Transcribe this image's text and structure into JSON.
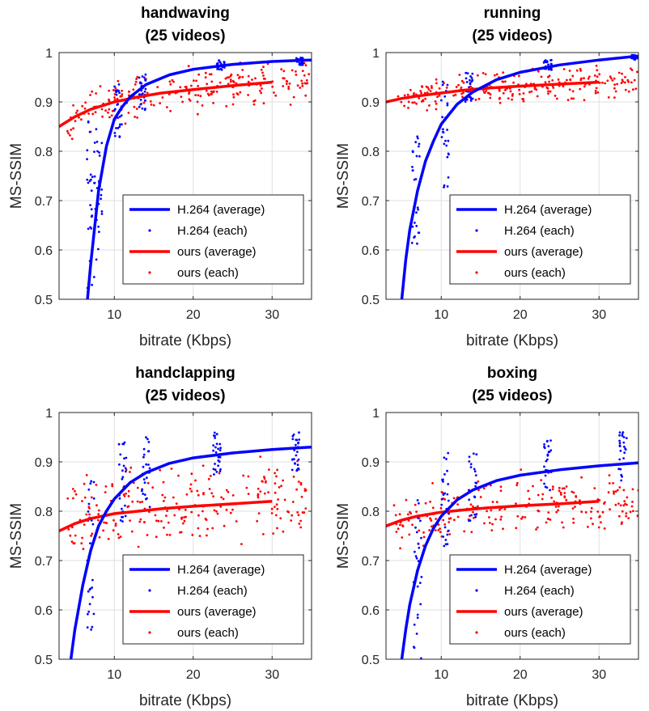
{
  "figure": {
    "type": "scatter-with-fit-curves",
    "panel_count": 4
  },
  "colors": {
    "h264": "#0000ff",
    "ours": "#ff0000",
    "axis": "#262626"
  },
  "chart_data": [
    {
      "type": "scatter",
      "title": "handwaving",
      "subtitle": "(25 videos)",
      "xlabel": "bitrate (Kbps)",
      "ylabel": "MS-SSIM",
      "xlim": [
        3,
        35
      ],
      "ylim": [
        0.5,
        1
      ],
      "xticks": [
        10,
        20,
        30
      ],
      "yticks": [
        0.5,
        0.6,
        0.7,
        0.8,
        0.9,
        1
      ],
      "xtick_labels": [
        "10",
        "20",
        "30"
      ],
      "ytick_labels": [
        "0.5",
        "0.6",
        "0.7",
        "0.8",
        "0.9",
        "1"
      ],
      "legend_position": "bottom-right",
      "legend": [
        "H.264 (average)",
        "H.264 (each)",
        "ours (average)",
        "ours (each)"
      ],
      "curves": [
        {
          "name": "H.264 (average)",
          "x": [
            6.6,
            7,
            8,
            9,
            10,
            11,
            12,
            14,
            17,
            20,
            25,
            30,
            35
          ],
          "y": [
            0.5,
            0.57,
            0.72,
            0.81,
            0.865,
            0.89,
            0.91,
            0.935,
            0.955,
            0.966,
            0.976,
            0.982,
            0.985
          ]
        },
        {
          "name": "ours (average)",
          "x": [
            3,
            5,
            7,
            10,
            13,
            16,
            20,
            25,
            30
          ],
          "y": [
            0.85,
            0.87,
            0.885,
            0.9,
            0.91,
            0.918,
            0.925,
            0.933,
            0.94
          ]
        }
      ],
      "scatter_series": [
        {
          "name": "H.264 (each)",
          "clusters": [
            {
              "x": 7,
              "y_range": [
                0.51,
                0.87
              ]
            },
            {
              "x": 8,
              "y_range": [
                0.58,
                0.86
              ]
            },
            {
              "x": 10.5,
              "y_range": [
                0.82,
                0.94
              ]
            },
            {
              "x": 13.5,
              "y_range": [
                0.88,
                0.96
              ]
            },
            {
              "x": 23.5,
              "y_range": [
                0.965,
                0.985
              ]
            },
            {
              "x": 33.5,
              "y_range": [
                0.975,
                0.99
              ]
            }
          ]
        },
        {
          "name": "ours (each)",
          "x_range": [
            4,
            35
          ],
          "spread": 0.035
        }
      ]
    },
    {
      "type": "scatter",
      "title": "running",
      "subtitle": "(25 videos)",
      "xlabel": "bitrate (Kbps)",
      "ylabel": "MS-SSIM",
      "xlim": [
        3,
        35
      ],
      "ylim": [
        0.5,
        1
      ],
      "xticks": [
        10,
        20,
        30
      ],
      "yticks": [
        0.5,
        0.6,
        0.7,
        0.8,
        0.9,
        1
      ],
      "xtick_labels": [
        "10",
        "20",
        "30"
      ],
      "ytick_labels": [
        "0.5",
        "0.6",
        "0.7",
        "0.8",
        "0.9",
        "1"
      ],
      "legend_position": "bottom-right",
      "legend": [
        "H.264 (average)",
        "H.264 (each)",
        "ours (average)",
        "ours (each)"
      ],
      "curves": [
        {
          "name": "H.264 (average)",
          "x": [
            5,
            5.5,
            6,
            7,
            8,
            9,
            10,
            12,
            14,
            17,
            20,
            25,
            30,
            35
          ],
          "y": [
            0.5,
            0.58,
            0.64,
            0.72,
            0.78,
            0.82,
            0.855,
            0.895,
            0.92,
            0.945,
            0.96,
            0.975,
            0.985,
            0.993
          ]
        },
        {
          "name": "ours (average)",
          "x": [
            3,
            5,
            7,
            10,
            13,
            16,
            20,
            25,
            30
          ],
          "y": [
            0.9,
            0.907,
            0.912,
            0.918,
            0.924,
            0.928,
            0.932,
            0.936,
            0.94
          ]
        }
      ],
      "scatter_series": [
        {
          "name": "H.264 (each)",
          "clusters": [
            {
              "x": 6.8,
              "y_range": [
                0.6,
                0.83
              ]
            },
            {
              "x": 10.5,
              "y_range": [
                0.72,
                0.95
              ]
            },
            {
              "x": 13.5,
              "y_range": [
                0.9,
                0.96
              ]
            },
            {
              "x": 23.5,
              "y_range": [
                0.965,
                0.985
              ]
            },
            {
              "x": 34.5,
              "y_range": [
                0.985,
                0.995
              ]
            }
          ]
        },
        {
          "name": "ours (each)",
          "x_range": [
            4,
            35
          ],
          "spread": 0.025
        }
      ]
    },
    {
      "type": "scatter",
      "title": "handclapping",
      "subtitle": "(25 videos)",
      "xlabel": "bitrate (Kbps)",
      "ylabel": "MS-SSIM",
      "xlim": [
        3,
        35
      ],
      "ylim": [
        0.5,
        1
      ],
      "xticks": [
        10,
        20,
        30
      ],
      "yticks": [
        0.5,
        0.6,
        0.7,
        0.8,
        0.9,
        1
      ],
      "xtick_labels": [
        "10",
        "20",
        "30"
      ],
      "ytick_labels": [
        "0.5",
        "0.6",
        "0.7",
        "0.8",
        "0.9",
        "1"
      ],
      "legend_position": "bottom-right",
      "legend": [
        "H.264 (average)",
        "H.264 (each)",
        "ours (average)",
        "ours (each)"
      ],
      "curves": [
        {
          "name": "H.264 (average)",
          "x": [
            4.5,
            5,
            6,
            7,
            8,
            9,
            10,
            12,
            14,
            17,
            20,
            25,
            30,
            35
          ],
          "y": [
            0.5,
            0.56,
            0.65,
            0.72,
            0.77,
            0.8,
            0.825,
            0.858,
            0.878,
            0.897,
            0.908,
            0.918,
            0.925,
            0.93
          ]
        },
        {
          "name": "ours (average)",
          "x": [
            3,
            5,
            7,
            10,
            13,
            16,
            20,
            25,
            30
          ],
          "y": [
            0.76,
            0.775,
            0.785,
            0.795,
            0.8,
            0.805,
            0.81,
            0.815,
            0.82
          ]
        }
      ],
      "scatter_series": [
        {
          "name": "H.264 (each)",
          "clusters": [
            {
              "x": 7,
              "y_range": [
                0.55,
                0.87
              ]
            },
            {
              "x": 11,
              "y_range": [
                0.77,
                0.94
              ]
            },
            {
              "x": 14,
              "y_range": [
                0.8,
                0.95
              ]
            },
            {
              "x": 23,
              "y_range": [
                0.87,
                0.96
              ]
            },
            {
              "x": 33,
              "y_range": [
                0.88,
                0.96
              ]
            }
          ]
        },
        {
          "name": "ours (each)",
          "x_range": [
            4,
            35
          ],
          "spread": 0.07
        }
      ]
    },
    {
      "type": "scatter",
      "title": "boxing",
      "subtitle": "(25 videos)",
      "xlabel": "bitrate (Kbps)",
      "ylabel": "MS-SSIM",
      "xlim": [
        3,
        35
      ],
      "ylim": [
        0.5,
        1
      ],
      "xticks": [
        10,
        20,
        30
      ],
      "yticks": [
        0.5,
        0.6,
        0.7,
        0.8,
        0.9,
        1
      ],
      "xtick_labels": [
        "10",
        "20",
        "30"
      ],
      "ytick_labels": [
        "0.5",
        "0.6",
        "0.7",
        "0.8",
        "0.9",
        "1"
      ],
      "legend_position": "bottom-right",
      "legend": [
        "H.264 (average)",
        "H.264 (each)",
        "ours (average)",
        "ours (each)"
      ],
      "curves": [
        {
          "name": "H.264 (average)",
          "x": [
            5,
            5.5,
            6,
            7,
            8,
            9,
            10,
            12,
            14,
            17,
            20,
            25,
            30,
            35
          ],
          "y": [
            0.5,
            0.56,
            0.61,
            0.68,
            0.73,
            0.765,
            0.79,
            0.823,
            0.843,
            0.862,
            0.873,
            0.884,
            0.892,
            0.898
          ]
        },
        {
          "name": "ours (average)",
          "x": [
            3,
            5,
            7,
            10,
            13,
            16,
            20,
            25,
            30
          ],
          "y": [
            0.77,
            0.782,
            0.79,
            0.798,
            0.803,
            0.807,
            0.811,
            0.815,
            0.82
          ]
        }
      ],
      "scatter_series": [
        {
          "name": "H.264 (each)",
          "clusters": [
            {
              "x": 7,
              "y_range": [
                0.5,
                0.84
              ]
            },
            {
              "x": 10.5,
              "y_range": [
                0.72,
                0.92
              ]
            },
            {
              "x": 14,
              "y_range": [
                0.78,
                0.93
              ]
            },
            {
              "x": 23.5,
              "y_range": [
                0.84,
                0.95
              ]
            },
            {
              "x": 33,
              "y_range": [
                0.86,
                0.96
              ]
            }
          ]
        },
        {
          "name": "ours (each)",
          "x_range": [
            4,
            35
          ],
          "spread": 0.05
        }
      ]
    }
  ]
}
